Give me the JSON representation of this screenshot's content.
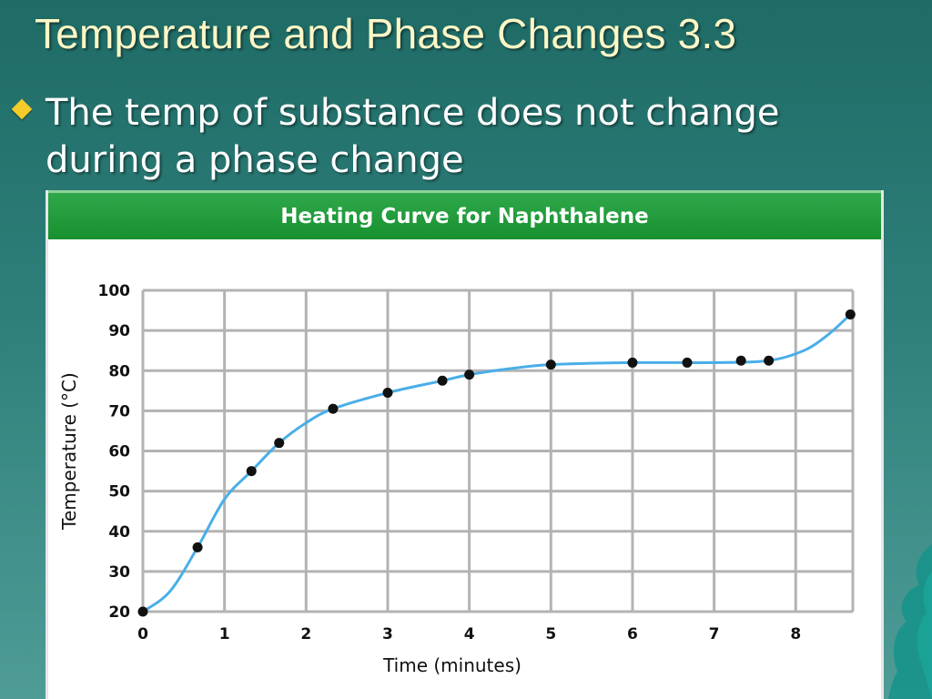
{
  "slide": {
    "title": "Temperature and Phase Changes 3.3",
    "bullet": "The temp of substance does not change during a phase change",
    "bullet_icon": "diamond-bullet-icon"
  },
  "colors": {
    "background": "#2e7f7a",
    "title": "#fdf6c6",
    "bullet_icon": "#f4cc2a",
    "header_green": "#17912f",
    "curve": "#49aee8",
    "points": "#111111",
    "grid": "#b3b3b3"
  },
  "chart_data": {
    "type": "scatter",
    "title": "Heating Curve for Naphthalene",
    "xlabel": "Time (minutes)",
    "ylabel": "Temperature (°C)",
    "xlim": [
      0,
      8.7
    ],
    "ylim": [
      20,
      100
    ],
    "x_ticks": [
      0,
      1,
      2,
      3,
      4,
      5,
      6,
      7,
      8
    ],
    "y_ticks": [
      20,
      30,
      40,
      50,
      60,
      70,
      80,
      90,
      100
    ],
    "grid": true,
    "legend": "none",
    "points": [
      {
        "x": 0,
        "y": 20
      },
      {
        "x": 0.67,
        "y": 36
      },
      {
        "x": 1.33,
        "y": 55
      },
      {
        "x": 1.67,
        "y": 62
      },
      {
        "x": 2.33,
        "y": 70.5
      },
      {
        "x": 3.0,
        "y": 74.5
      },
      {
        "x": 3.67,
        "y": 77.5
      },
      {
        "x": 4.0,
        "y": 79
      },
      {
        "x": 5.0,
        "y": 81.5
      },
      {
        "x": 6.0,
        "y": 82
      },
      {
        "x": 6.67,
        "y": 82
      },
      {
        "x": 7.33,
        "y": 82.5
      },
      {
        "x": 7.67,
        "y": 82.5
      },
      {
        "x": 8.67,
        "y": 94
      }
    ],
    "curve": [
      [
        0,
        20
      ],
      [
        0.33,
        25
      ],
      [
        0.67,
        36
      ],
      [
        1,
        48
      ],
      [
        1.33,
        55
      ],
      [
        1.67,
        62
      ],
      [
        2,
        67
      ],
      [
        2.33,
        70.5
      ],
      [
        3,
        74.5
      ],
      [
        3.67,
        77.5
      ],
      [
        4,
        79
      ],
      [
        4.5,
        80.5
      ],
      [
        5,
        81.5
      ],
      [
        6,
        82
      ],
      [
        7,
        82
      ],
      [
        7.67,
        82.5
      ],
      [
        8.1,
        85
      ],
      [
        8.4,
        89
      ],
      [
        8.67,
        94
      ]
    ]
  }
}
